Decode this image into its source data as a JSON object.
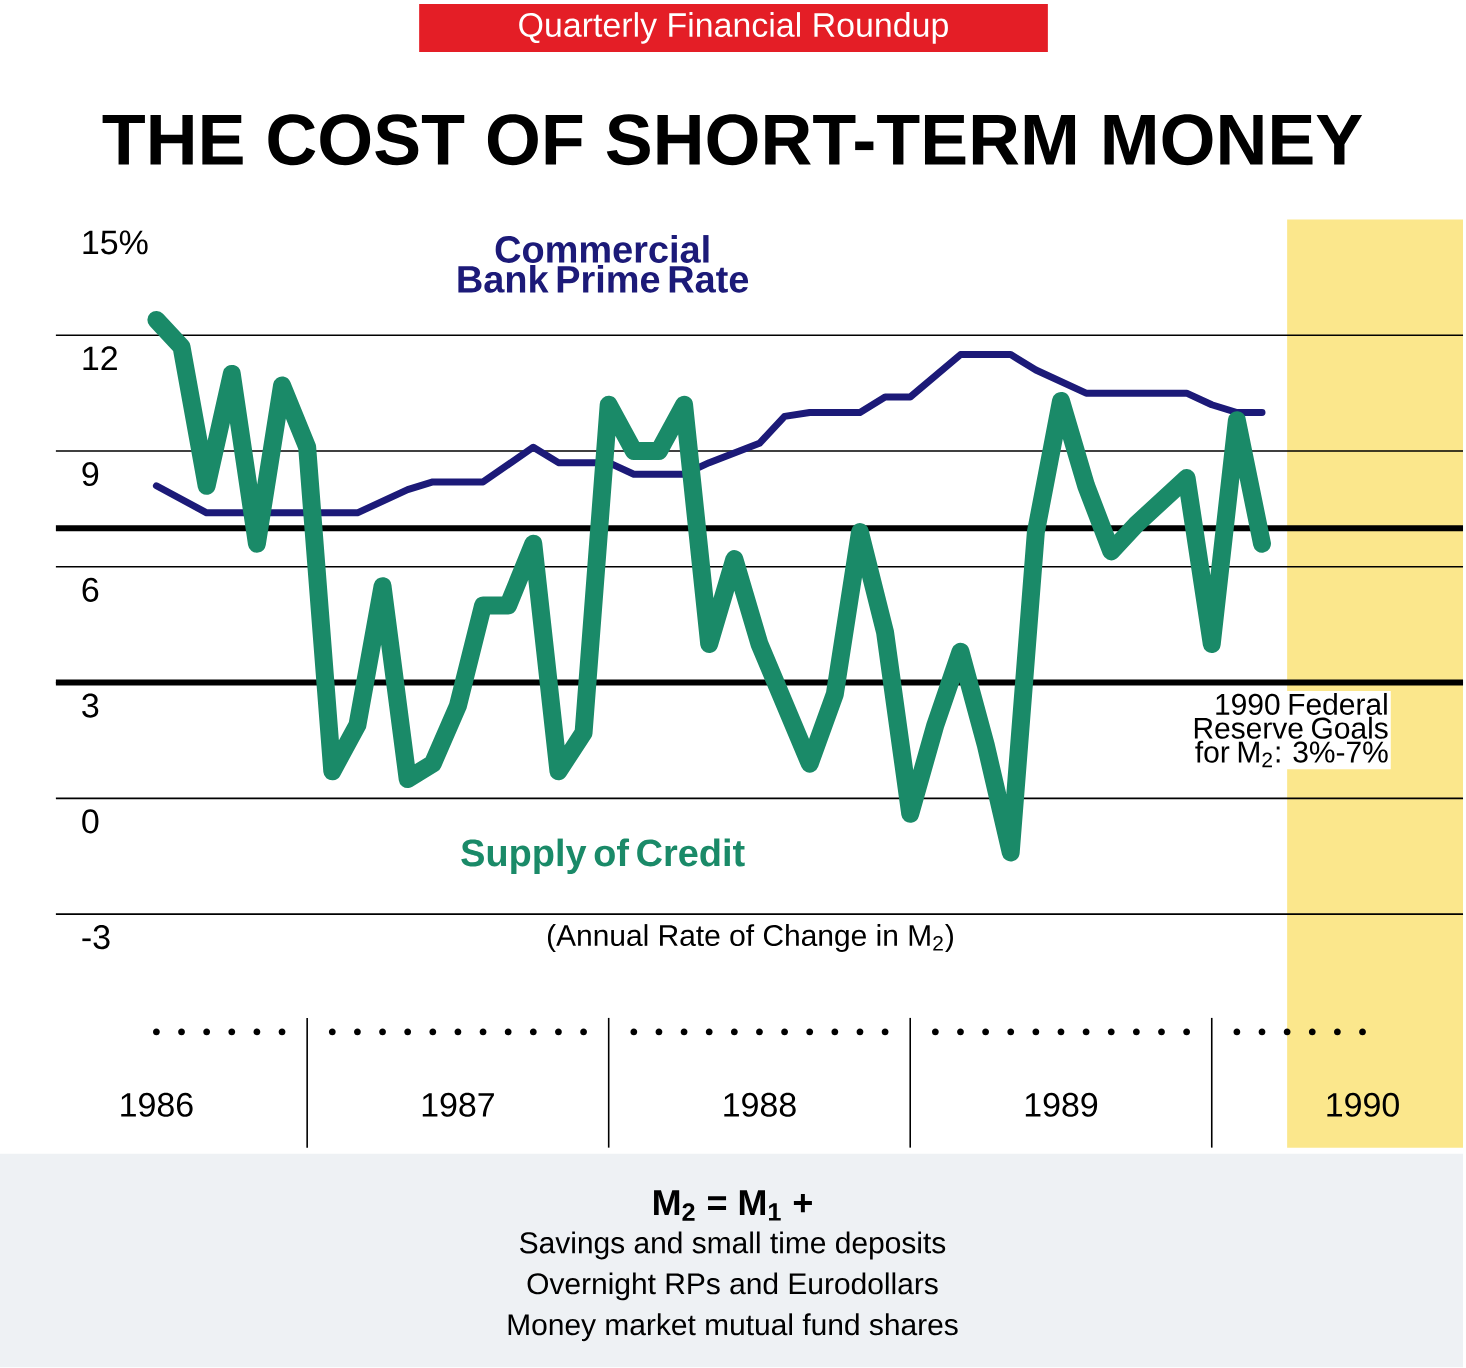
{
  "chart_data": {
    "type": "line",
    "title": "THE COST OF SHORT-TERM MONEY",
    "subtitle": "Quarterly Financial Roundup",
    "series": [
      {
        "name": "Commercial Bank Prime Rate",
        "color": "#1c1a78",
        "x": [
          "1986-07",
          "1986-09",
          "1987-03",
          "1987-05",
          "1987-06",
          "1987-08",
          "1987-10",
          "1987-11",
          "1988-01",
          "1988-02",
          "1988-04",
          "1988-05",
          "1988-07",
          "1988-08",
          "1988-09",
          "1988-11",
          "1988-12",
          "1989-01",
          "1989-03",
          "1989-05",
          "1989-06",
          "1989-08",
          "1989-12",
          "1990-01",
          "1990-02",
          "1990-03"
        ],
        "values": [
          8.1,
          7.4,
          7.4,
          8.0,
          8.2,
          8.2,
          9.1,
          8.7,
          8.7,
          8.4,
          8.4,
          8.7,
          9.2,
          9.9,
          10.0,
          10.0,
          10.4,
          10.4,
          11.5,
          11.5,
          11.1,
          10.5,
          10.5,
          10.2,
          10.0,
          10.0
        ]
      },
      {
        "name": "Supply of Credit",
        "color": "#1a8a68",
        "x": [
          "1986-07",
          "1986-08",
          "1986-09",
          "1986-10",
          "1986-11",
          "1986-12",
          "1987-01",
          "1987-02",
          "1987-03",
          "1987-04",
          "1987-05",
          "1987-06",
          "1987-07",
          "1987-08",
          "1987-09",
          "1987-10",
          "1987-11",
          "1987-12",
          "1988-01",
          "1988-02",
          "1988-03",
          "1988-04",
          "1988-05",
          "1988-06",
          "1988-07",
          "1988-09",
          "1988-10",
          "1988-11",
          "1988-12",
          "1989-01",
          "1989-02",
          "1989-03",
          "1989-04",
          "1989-05",
          "1989-06",
          "1989-07",
          "1989-08",
          "1989-09",
          "1989-10",
          "1989-12",
          "1990-01",
          "1990-02",
          "1990-03"
        ],
        "values": [
          12.4,
          11.7,
          8.1,
          11.0,
          6.6,
          10.7,
          9.1,
          0.7,
          1.9,
          5.5,
          0.5,
          0.9,
          2.4,
          5.0,
          5.0,
          6.6,
          0.7,
          1.7,
          10.2,
          9.0,
          9.0,
          10.2,
          4.0,
          6.2,
          4.0,
          0.9,
          2.7,
          6.9,
          4.3,
          -0.4,
          1.9,
          3.8,
          1.4,
          -1.4,
          6.9,
          10.3,
          8.1,
          6.4,
          7.1,
          8.3,
          4.0,
          9.8,
          6.6
        ]
      }
    ],
    "xlim": [
      "1986-03",
      "1990-11"
    ],
    "xticks": [
      {
        "value": "1986-07",
        "label": "1986"
      },
      {
        "value": "1987-07",
        "label": "1987"
      },
      {
        "value": "1988-07",
        "label": "1988"
      },
      {
        "value": "1989-07",
        "label": "1989"
      },
      {
        "value": "1990-07",
        "label": "1990"
      }
    ],
    "ylim": [
      -3,
      15
    ],
    "yticks": [
      {
        "value": 15,
        "label": "15%"
      },
      12,
      9,
      6,
      3,
      0,
      -3
    ],
    "grid": "y",
    "ref_lines": [
      {
        "axis": "y",
        "value": 7,
        "color": "#000000"
      },
      {
        "axis": "y",
        "value": 3,
        "color": "#000000"
      }
    ],
    "bands": [
      {
        "axis": "x",
        "from": "1990-04",
        "to": "1990-11",
        "color": "#fbe78c"
      }
    ],
    "annotations": [
      "(Annual Rate of Change in M$_{2}$)",
      "1990 Federal Reserve Goals for M$_{2}$: 3%-7%",
      "M$_{2}$ = M$_{1}$ +",
      "Savings and small time deposits",
      "Overnight RPs and Eurodollars",
      "Money market mutual fund shares"
    ]
  }
}
